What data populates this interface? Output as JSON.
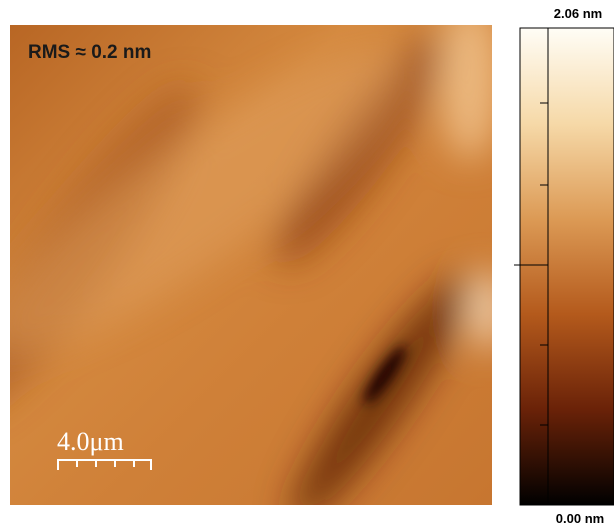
{
  "image": {
    "annotation": "RMS ≈ 0.2 nm",
    "scale_bar_label": "4.0μm"
  },
  "colorbar": {
    "max_label": "2.06 nm",
    "min_label": "0.00 nm"
  }
}
